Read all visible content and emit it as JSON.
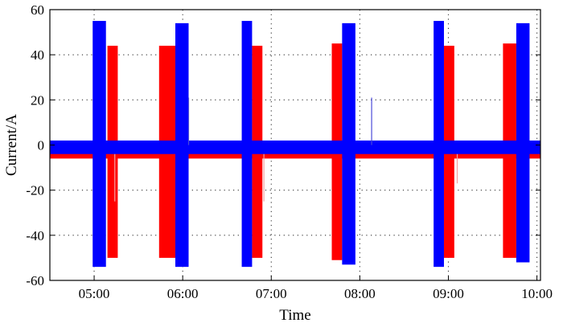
{
  "chart_data": {
    "type": "area",
    "xlabel": "Time",
    "ylabel": "Current/A",
    "x_tick_labels": [
      "05:00",
      "06:00",
      "07:00",
      "08:00",
      "09:00",
      "10:00"
    ],
    "x_ticks_hours": [
      5,
      6,
      7,
      8,
      9,
      10
    ],
    "xlim_hours": [
      4.5,
      10.04
    ],
    "ylim": [
      -60,
      60
    ],
    "y_ticks": [
      -60,
      -40,
      -20,
      0,
      20,
      40,
      60
    ],
    "grid": "dotted",
    "legend": "none",
    "baseline_band": [
      -5,
      2
    ],
    "series": [
      {
        "color": "#ff0000",
        "bursts": [
          {
            "start": "05:09",
            "end": "05:16",
            "min": -50,
            "max": 44
          },
          {
            "start": "05:44",
            "end": "05:55",
            "min": -50,
            "max": 44
          },
          {
            "start": "06:47",
            "end": "06:54",
            "min": -50,
            "max": 44
          },
          {
            "start": "07:41",
            "end": "07:48",
            "min": -51,
            "max": 45
          },
          {
            "start": "08:57",
            "end": "09:04",
            "min": -50,
            "max": 44
          },
          {
            "start": "09:37",
            "end": "09:46",
            "min": -50,
            "max": 45
          }
        ],
        "spikes": [
          {
            "time": "05:14",
            "value": -25
          },
          {
            "time": "06:55",
            "value": -25
          },
          {
            "time": "09:06",
            "value": -17
          }
        ]
      },
      {
        "color": "#0000ff",
        "bursts": [
          {
            "start": "04:59",
            "end": "05:08",
            "min": -54,
            "max": 55
          },
          {
            "start": "05:55",
            "end": "06:04",
            "min": -54,
            "max": 54
          },
          {
            "start": "06:40",
            "end": "06:47",
            "min": -54,
            "max": 55
          },
          {
            "start": "07:48",
            "end": "07:57",
            "min": -53,
            "max": 54
          },
          {
            "start": "08:50",
            "end": "08:57",
            "min": -54,
            "max": 55
          },
          {
            "start": "09:46",
            "end": "09:55",
            "min": -52,
            "max": 54
          }
        ],
        "spikes": [
          {
            "time": "06:04",
            "value": 21
          },
          {
            "time": "08:08",
            "value": 21
          }
        ]
      }
    ]
  }
}
